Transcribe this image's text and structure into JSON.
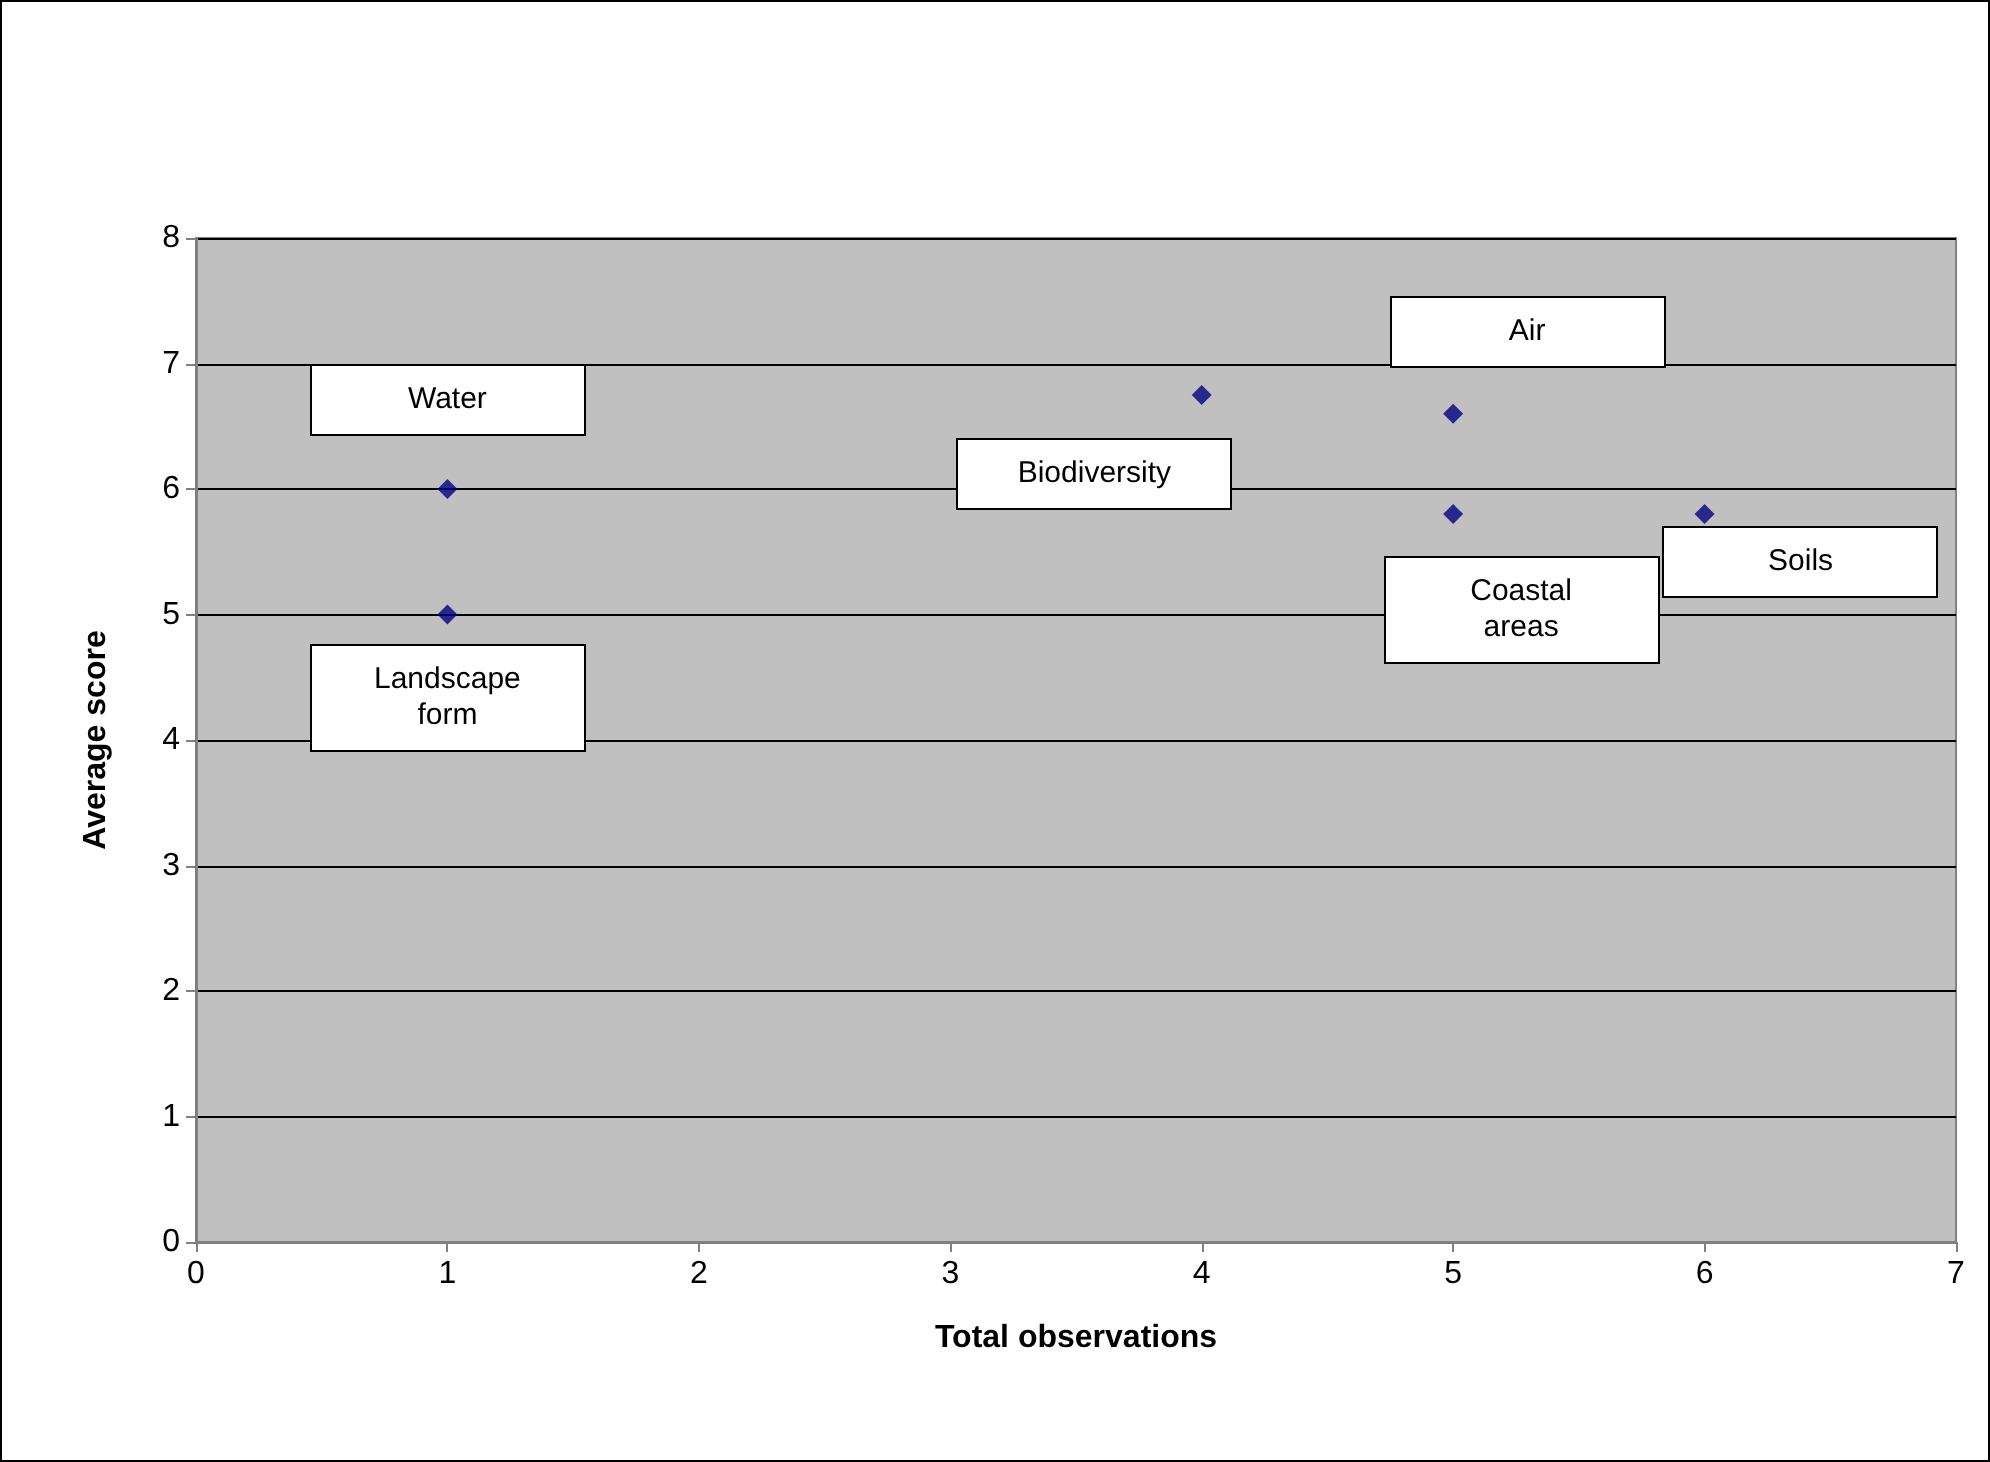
{
  "chart_data": {
    "type": "scatter",
    "xlabel": "Total observations",
    "ylabel": "Average score",
    "x": [
      1,
      1,
      4,
      5,
      5,
      6
    ],
    "values": [
      6,
      5,
      6.75,
      6.6,
      5.8,
      5.8
    ],
    "color": "#000080",
    "marker": "diamond",
    "grid": "y",
    "xlim": [
      0,
      7
    ],
    "xticks": [
      0,
      1,
      2,
      3,
      4,
      5,
      6,
      7
    ],
    "ylim": [
      0,
      8
    ],
    "yticks": [
      0,
      1,
      2,
      3,
      4,
      5,
      6,
      7,
      8
    ],
    "annotations": [
      {
        "text": "Water",
        "x": 1,
        "y": 6
      },
      {
        "text": "Landscape form",
        "x": 1,
        "y": 5
      },
      {
        "text": "Biodiversity",
        "x": 4,
        "y": 6.75
      },
      {
        "text": "Air",
        "x": 5,
        "y": 6.6
      },
      {
        "text": "Coastal areas",
        "x": 5,
        "y": 5.8
      },
      {
        "text": "Soils",
        "x": 6,
        "y": 5.8
      }
    ]
  }
}
